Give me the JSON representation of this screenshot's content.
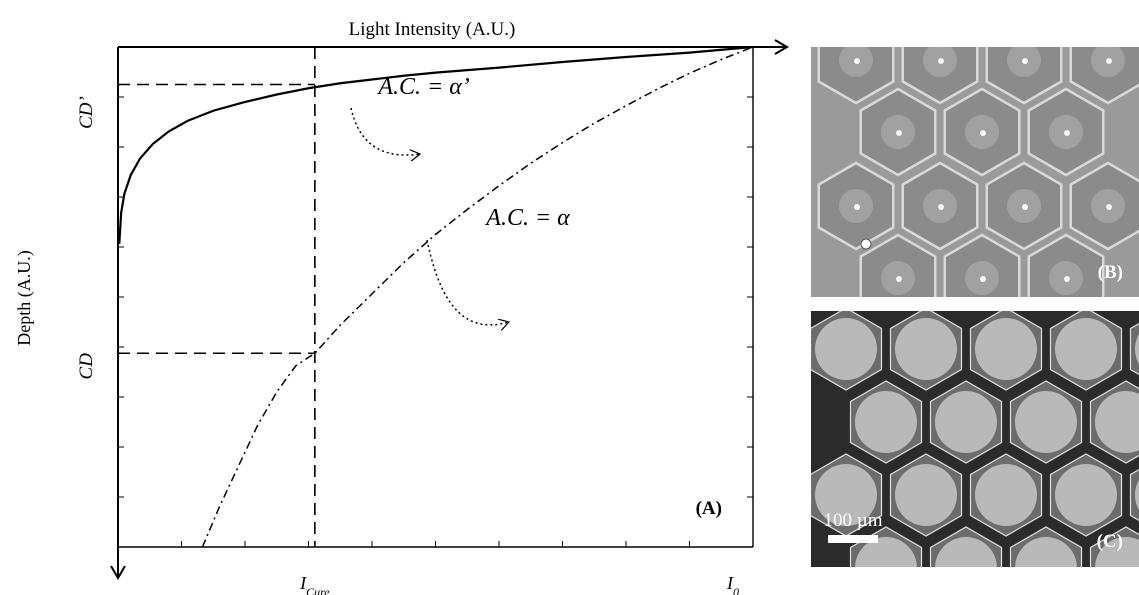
{
  "chart_data": [
    {
      "type": "line",
      "panel_label": "(A)",
      "title": "",
      "xlabel": "Light Intensity (A.U.)",
      "ylabel": "Depth (A.U.)",
      "x_tick_labels": [
        {
          "text": "I",
          "sub": "Cure",
          "x": 3.1
        },
        {
          "text": "I",
          "sub": "0",
          "x": 10
        }
      ],
      "y_tick_labels": [
        {
          "text": "CD’",
          "y": 0.6
        },
        {
          "text": "CD",
          "y": 4.9
        }
      ],
      "xlim": [
        0,
        10
      ],
      "ylim": [
        0,
        8
      ],
      "y_inverted": true,
      "minor_ticks": 10,
      "curves": [
        {
          "name": "A.C. = α’",
          "style": "solid",
          "points": [
            [
              0.02,
              3.15
            ],
            [
              0.05,
              2.65
            ],
            [
              0.1,
              2.35
            ],
            [
              0.2,
              2.05
            ],
            [
              0.35,
              1.78
            ],
            [
              0.55,
              1.55
            ],
            [
              0.8,
              1.35
            ],
            [
              1.1,
              1.18
            ],
            [
              1.5,
              1.02
            ],
            [
              2.0,
              0.88
            ],
            [
              2.5,
              0.76
            ],
            [
              3.0,
              0.66
            ],
            [
              3.5,
              0.58
            ],
            [
              4.0,
              0.52
            ],
            [
              4.5,
              0.46
            ],
            [
              5.0,
              0.41
            ],
            [
              6.0,
              0.33
            ],
            [
              7.0,
              0.24
            ],
            [
              8.0,
              0.16
            ],
            [
              9.0,
              0.09
            ],
            [
              10.0,
              0.0
            ]
          ]
        },
        {
          "name": "A.C. = α",
          "style": "dashed",
          "points": [
            [
              1.33,
              8.0
            ],
            [
              1.6,
              7.35
            ],
            [
              1.9,
              6.7
            ],
            [
              2.2,
              6.05
            ],
            [
              2.5,
              5.52
            ],
            [
              2.8,
              5.1
            ],
            [
              3.1,
              4.9
            ],
            [
              3.5,
              4.45
            ],
            [
              4.0,
              3.95
            ],
            [
              4.5,
              3.45
            ],
            [
              5.0,
              3.0
            ],
            [
              5.5,
              2.6
            ],
            [
              6.0,
              2.22
            ],
            [
              6.5,
              1.86
            ],
            [
              7.0,
              1.53
            ],
            [
              7.5,
              1.22
            ],
            [
              8.0,
              0.94
            ],
            [
              8.5,
              0.67
            ],
            [
              9.0,
              0.42
            ],
            [
              9.5,
              0.2
            ],
            [
              10.0,
              0.0
            ]
          ]
        }
      ],
      "annotations": [
        {
          "text": "A.C. = α’",
          "x": 4.1,
          "y": 0.75
        },
        {
          "text": "A.C. = α",
          "x": 5.8,
          "y": 2.85
        }
      ],
      "guides": {
        "vertical_x": 3.1,
        "horizontal_y": [
          0.6,
          4.9
        ]
      }
    }
  ],
  "images": [
    {
      "panel_label": "(B)",
      "description_free": true,
      "background": "#9a9a9a",
      "cell_center": "#8a8a8a",
      "cell_border": "#d8d8d8"
    },
    {
      "panel_label": "(C)",
      "scale_bar_label": "100 µm",
      "background": "#2b2b2b",
      "cell_color": "#b8b8b8"
    }
  ]
}
